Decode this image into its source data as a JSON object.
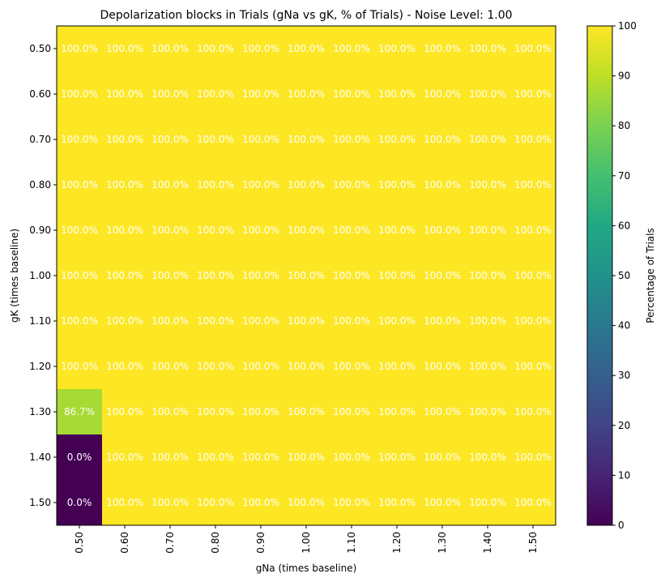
{
  "chart_data": {
    "type": "heatmap",
    "title": "Depolarization blocks in Trials (gNa vs gK, % of Trials) - Noise Level: 1.00",
    "xlabel": "gNa (times baseline)",
    "ylabel": "gK (times baseline)",
    "x_categories": [
      "0.50",
      "0.60",
      "0.70",
      "0.80",
      "0.90",
      "1.00",
      "1.10",
      "1.20",
      "1.30",
      "1.40",
      "1.50"
    ],
    "y_categories": [
      "0.50",
      "0.60",
      "0.70",
      "0.80",
      "0.90",
      "1.00",
      "1.10",
      "1.20",
      "1.30",
      "1.40",
      "1.50"
    ],
    "values": [
      [
        100,
        100,
        100,
        100,
        100,
        100,
        100,
        100,
        100,
        100,
        100
      ],
      [
        100,
        100,
        100,
        100,
        100,
        100,
        100,
        100,
        100,
        100,
        100
      ],
      [
        100,
        100,
        100,
        100,
        100,
        100,
        100,
        100,
        100,
        100,
        100
      ],
      [
        100,
        100,
        100,
        100,
        100,
        100,
        100,
        100,
        100,
        100,
        100
      ],
      [
        100,
        100,
        100,
        100,
        100,
        100,
        100,
        100,
        100,
        100,
        100
      ],
      [
        100,
        100,
        100,
        100,
        100,
        100,
        100,
        100,
        100,
        100,
        100
      ],
      [
        100,
        100,
        100,
        100,
        100,
        100,
        100,
        100,
        100,
        100,
        100
      ],
      [
        100,
        100,
        100,
        100,
        100,
        100,
        100,
        100,
        100,
        100,
        100
      ],
      [
        86.7,
        100,
        100,
        100,
        100,
        100,
        100,
        100,
        100,
        100,
        100
      ],
      [
        0,
        100,
        100,
        100,
        100,
        100,
        100,
        100,
        100,
        100,
        100
      ],
      [
        0,
        100,
        100,
        100,
        100,
        100,
        100,
        100,
        100,
        100,
        100
      ]
    ],
    "value_format_suffix": "%",
    "colormap": "viridis",
    "color_range": [
      0,
      100
    ],
    "colorbar_label": "Percentage of Trials",
    "colorbar_ticks": [
      0,
      10,
      20,
      30,
      40,
      50,
      60,
      70,
      80,
      90,
      100
    ],
    "annotation_color": "#ffffff"
  }
}
